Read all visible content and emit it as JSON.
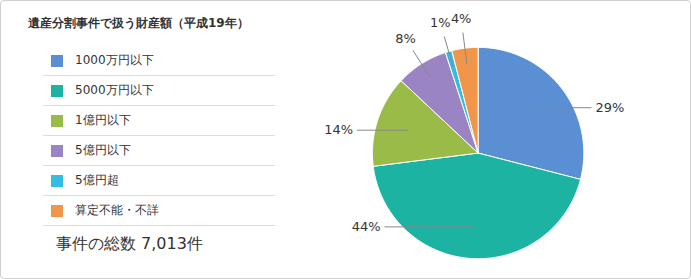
{
  "chart_data": {
    "type": "pie",
    "title": "遺産分割事件で扱う財産額（平成19年）",
    "subtitle": "事件の総数 7,013件",
    "categories": [
      "1000万円以下",
      "5000万円以下",
      "1億円以下",
      "5億円以下",
      "5億円超",
      "算定不能・不詳"
    ],
    "values": [
      29,
      44,
      14,
      8,
      1,
      4
    ],
    "value_labels": [
      "29%",
      "44%",
      "14%",
      "8%",
      "1%",
      "4%"
    ],
    "colors": [
      "#5b8fd4",
      "#1cb3a2",
      "#9bbb48",
      "#9b84c3",
      "#35bde0",
      "#f0964a"
    ],
    "data_labels": true,
    "legend": "left"
  }
}
